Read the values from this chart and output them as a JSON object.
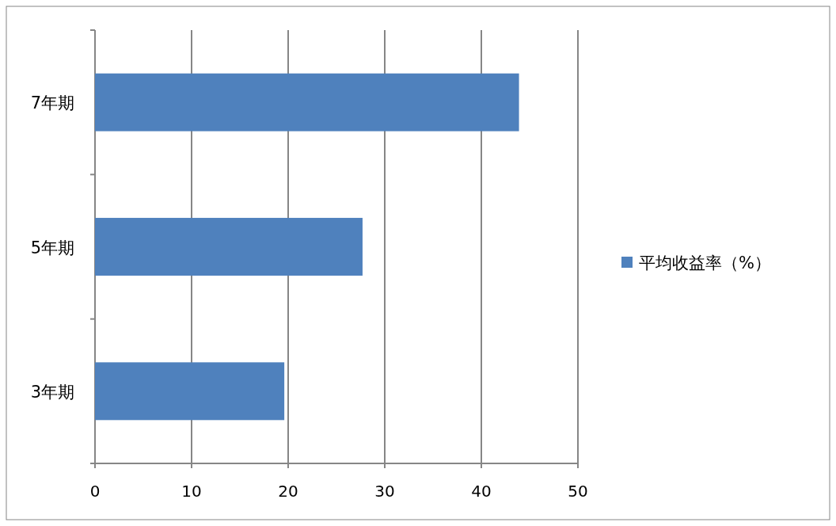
{
  "chart_data": {
    "type": "bar",
    "orientation": "horizontal",
    "categories": [
      "7年期",
      "5年期",
      "3年期"
    ],
    "series": [
      {
        "name": "平均收益率（%）",
        "color": "#4f81bd",
        "values": [
          43.9,
          27.7,
          19.6
        ]
      }
    ],
    "xlim": [
      0,
      50
    ],
    "xticks": [
      0,
      10,
      20,
      30,
      40,
      50
    ],
    "grid": "x",
    "legend": "right"
  }
}
